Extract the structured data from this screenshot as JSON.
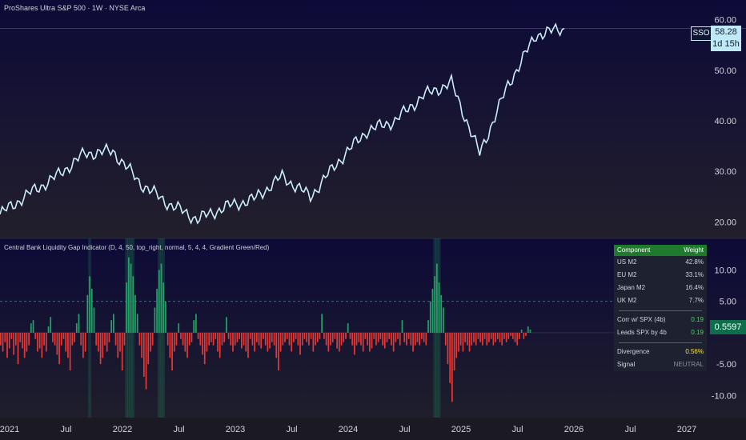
{
  "header": {
    "price_title": "ProShares Ultra S&P 500 · 1W · NYSE Arca",
    "indicator_title": "Central Bank Liquidity Gap Indicator (D, 4, 50, top_right, normal, 5, 4, 4, Gradient Green/Red)"
  },
  "price_badge": {
    "symbol": "SSO",
    "price": "58.28",
    "countdown": "1d 15h"
  },
  "indicator_value": "0.5597",
  "table": {
    "header": {
      "left": "Component",
      "right": "Weight"
    },
    "components": [
      {
        "label": "US M2",
        "value": "42.8%"
      },
      {
        "label": "EU M2",
        "value": "33.1%"
      },
      {
        "label": "Japan M2",
        "value": "16.4%"
      },
      {
        "label": "UK M2",
        "value": "7.7%"
      }
    ],
    "corr_label": "Corr w/ SPX (4b)",
    "corr_value": "0.19",
    "leads_label": "Leads SPX by 4b",
    "leads_value": "0.19",
    "div_label": "Divergence",
    "div_value": "0.56%",
    "signal_label": "Signal",
    "signal_value": "NEUTRAL"
  },
  "colors": {
    "price_line": "#c9ecf7",
    "bar_pos": "#26a269",
    "bar_neg": "#e53935",
    "accent_table_header": "#1f7a2e"
  },
  "chart_data": [
    {
      "type": "line",
      "series": [
        {
          "name": "SSO",
          "x": [
            "2021-01",
            "2021-04",
            "2021-07",
            "2021-10",
            "2022-01",
            "2022-04",
            "2022-07",
            "2022-10",
            "2023-01",
            "2023-04",
            "2023-07",
            "2023-10",
            "2024-01",
            "2024-04",
            "2024-07",
            "2024-10",
            "2025-01",
            "2025-04",
            "2025-07",
            "2025-10",
            "2026-01"
          ],
          "values": [
            21.5,
            25.5,
            29.0,
            33.5,
            34.0,
            27.5,
            23.5,
            20.5,
            23.0,
            24.5,
            29.0,
            25.0,
            32.0,
            38.0,
            40.0,
            45.0,
            47.5,
            33.5,
            47.0,
            57.0,
            58.28
          ]
        }
      ],
      "y_ticks": [
        "20.00",
        "30.00",
        "40.00",
        "50.00",
        "60.00"
      ],
      "ylim": [
        18,
        62
      ]
    },
    {
      "type": "bar",
      "series": [
        {
          "name": "Liquidity Gap",
          "x_start": "2021-01",
          "values": [
            -2,
            -3,
            -1.5,
            -4,
            -2.5,
            -1,
            -3.5,
            -2,
            -5,
            -1.5,
            -2.5,
            -4,
            -3,
            -2,
            1.5,
            2,
            -1,
            -3,
            -2.5,
            -4,
            -2,
            -3,
            1,
            2.5,
            -1.5,
            -2,
            -3.5,
            -5,
            -2,
            -1,
            -3,
            -4,
            -6,
            -2,
            -1.5,
            1.5,
            3,
            -2,
            -4,
            -3,
            6,
            9,
            7,
            4,
            -2,
            -3,
            -5,
            -4,
            -2,
            -3,
            -1.5,
            2,
            3,
            -2,
            -4,
            -3,
            -6,
            -2,
            8,
            12,
            11,
            9,
            6,
            3,
            -2,
            -4,
            -7,
            -9,
            -5,
            -3,
            -2,
            4,
            7,
            10,
            11,
            8,
            5,
            -2,
            -4,
            -6,
            -3,
            -2,
            1.5,
            -1,
            -2,
            -3,
            -4,
            -2,
            -1.5,
            2,
            3,
            -1,
            -2,
            -3.5,
            -5,
            -3,
            -2,
            -1.5,
            -2,
            -1,
            -3,
            -4,
            -2,
            -1.5,
            2.5,
            -1,
            -2,
            -3,
            -2,
            -1.5,
            -1,
            -2.5,
            -2,
            -3,
            -4,
            -1,
            -2,
            -3,
            -1.5,
            -2,
            -2.5,
            -1,
            -2,
            -3,
            -2.5,
            -1.5,
            -2,
            -4,
            -6,
            -3,
            -2,
            -1.5,
            -1,
            -2,
            -3,
            -1.5,
            -1,
            -2,
            -3.5,
            -2,
            -1,
            -1.5,
            -2,
            -1,
            -3,
            -2,
            -1.5,
            -1,
            3,
            -1,
            -2,
            -3,
            -2,
            -1.5,
            -1,
            -2.5,
            -3,
            -2,
            -1.5,
            -1,
            1.5,
            -1,
            -2,
            -3.5,
            -2,
            -1.5,
            -2,
            -3,
            -1,
            -2,
            -3,
            -2.5,
            -1,
            -2,
            -1.5,
            -1,
            -2,
            -2.5,
            -1.5,
            -1,
            -2,
            -3,
            -1.5,
            -1,
            -2,
            2,
            -1.5,
            -2,
            -1,
            -2,
            -3,
            -2,
            -1.5,
            -2,
            -1,
            -1.5,
            -2,
            2,
            5,
            7,
            9,
            11,
            8,
            6,
            4,
            -2,
            -5,
            -8,
            -11,
            -6,
            -4,
            -3,
            -2,
            -3,
            -1.5,
            -2,
            -3,
            -2,
            -1.5,
            -2,
            -1,
            -1.5,
            -2,
            -1,
            -2,
            -1.5,
            -1,
            -2,
            -1.5,
            -1,
            -1.5,
            -2,
            -1,
            -1.5,
            -1,
            -0.5,
            -1,
            -1.5,
            -2,
            -1,
            0.5,
            -1,
            -0.5,
            1,
            0.5
          ]
        }
      ],
      "y_ticks": [
        "-10.00",
        "-5.00",
        "5.00",
        "10.00"
      ],
      "ylim": [
        -13,
        14
      ]
    }
  ],
  "x_axis": {
    "labels": [
      "2021",
      "Jul",
      "2022",
      "Jul",
      "2023",
      "Jul",
      "2024",
      "Jul",
      "2025",
      "Jul",
      "2026",
      "Jul",
      "2027"
    ]
  }
}
